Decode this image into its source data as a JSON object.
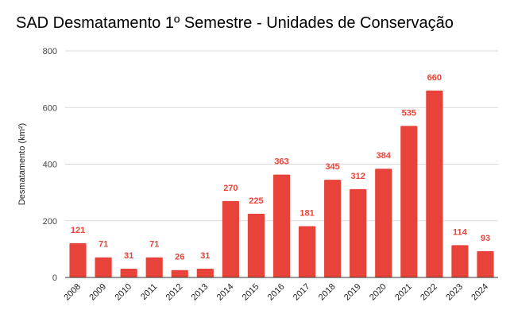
{
  "chart_data": {
    "type": "bar",
    "title": "SAD Desmatamento 1º Semestre - Unidades de Conservação",
    "ylabel": "Desmatamento (km²)",
    "xlabel": "",
    "ylim": [
      0,
      800
    ],
    "yticks": [
      0,
      200,
      400,
      600,
      800
    ],
    "grid": true,
    "legend": "none",
    "bar_color": "#e8433a",
    "label_color": "#e8433a",
    "categories": [
      "2008",
      "2009",
      "2010",
      "2011",
      "2012",
      "2013",
      "2014",
      "2015",
      "2016",
      "2017",
      "2018",
      "2019",
      "2020",
      "2021",
      "2022",
      "2023",
      "2024"
    ],
    "values": [
      121,
      71,
      31,
      71,
      26,
      31,
      270,
      225,
      363,
      181,
      345,
      312,
      384,
      535,
      660,
      114,
      93
    ]
  }
}
